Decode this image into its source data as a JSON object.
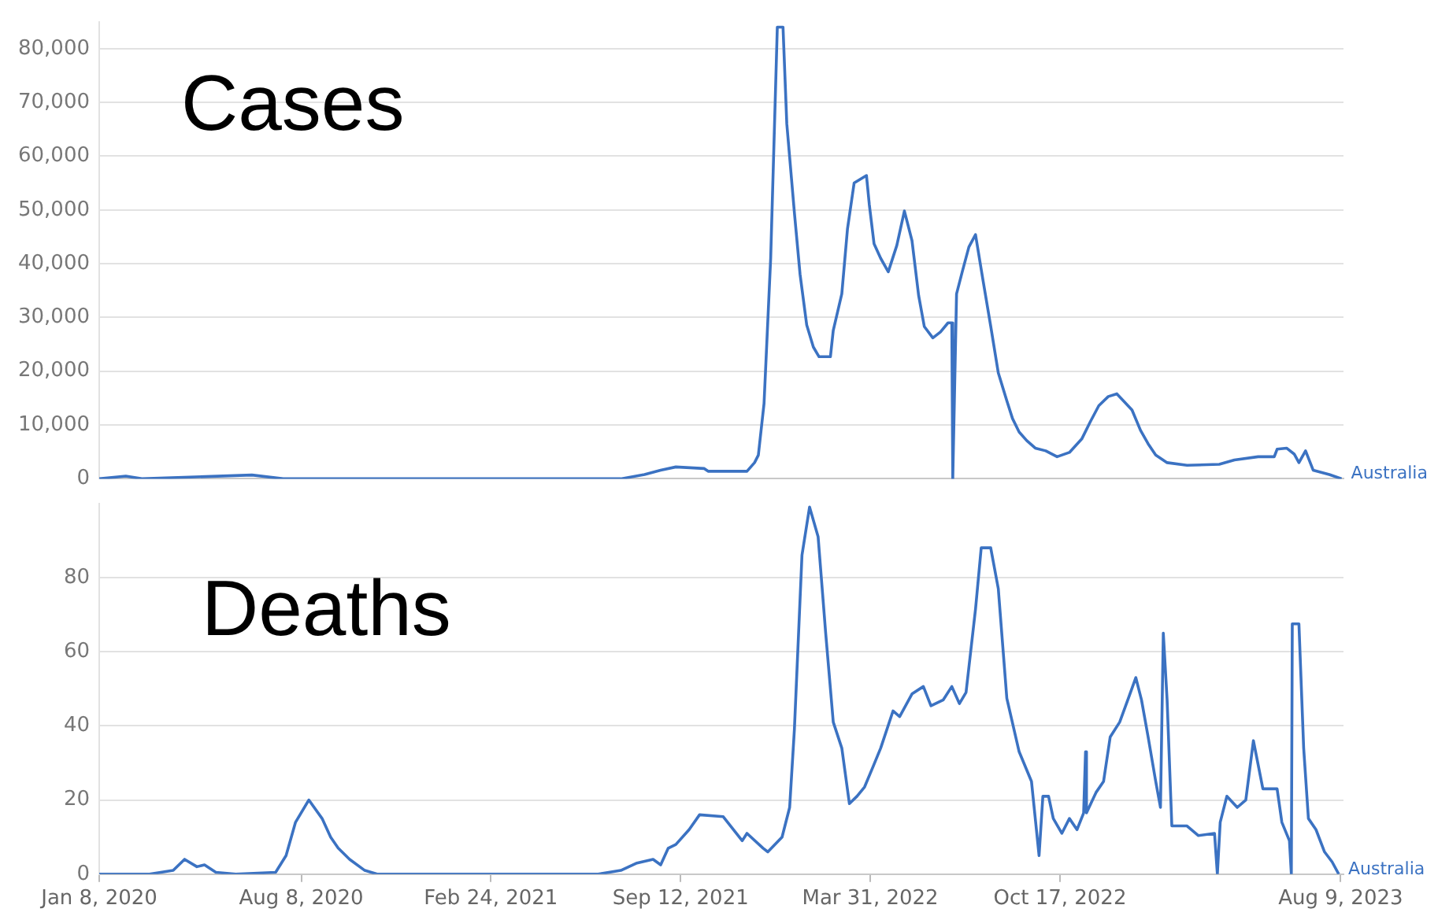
{
  "chart_data": [
    {
      "type": "line",
      "title": "Cases",
      "xlim": [
        "2020-01-08",
        "2023-08-12"
      ],
      "ylim": [
        0,
        85000
      ],
      "yticks": [
        {
          "value": 0,
          "label": "0"
        },
        {
          "value": 10000,
          "label": "10,000"
        },
        {
          "value": 20000,
          "label": "20,000"
        },
        {
          "value": 30000,
          "label": "30,000"
        },
        {
          "value": 40000,
          "label": "40,000"
        },
        {
          "value": 50000,
          "label": "50,000"
        },
        {
          "value": 60000,
          "label": "60,000"
        },
        {
          "value": 70000,
          "label": "70,000"
        },
        {
          "value": 80000,
          "label": "80,000"
        }
      ],
      "grid": "y",
      "tick_labels": "y",
      "marker": "none",
      "line_style": "solid",
      "series": [
        {
          "name": "Australia",
          "color": "#3b72c2",
          "x": [
            "2020-01-08",
            "2020-02-05",
            "2020-02-22",
            "2020-06-17",
            "2020-07-20",
            "2021-07-11",
            "2021-08-05",
            "2021-08-22",
            "2021-09-07",
            "2021-10-07",
            "2021-10-11",
            "2021-11-21",
            "2021-11-29",
            "2021-12-03",
            "2021-12-09",
            "2021-12-16",
            "2021-12-23",
            "2021-12-29",
            "2022-01-02",
            "2022-01-10",
            "2022-01-16",
            "2022-01-23",
            "2022-01-30",
            "2022-02-05",
            "2022-02-17",
            "2022-02-20",
            "2022-03-01",
            "2022-03-07",
            "2022-03-14",
            "2022-03-27",
            "2022-03-30",
            "2022-04-04",
            "2022-04-11",
            "2022-04-19",
            "2022-04-28",
            "2022-05-06",
            "2022-05-14",
            "2022-05-21",
            "2022-05-27",
            "2022-06-05",
            "2022-06-13",
            "2022-06-21",
            "2022-06-25",
            "2022-06-26",
            "2022-06-30",
            "2022-07-06",
            "2022-07-13",
            "2022-07-20",
            "2022-07-28",
            "2022-08-05",
            "2022-08-13",
            "2022-08-22",
            "2022-08-28",
            "2022-09-04",
            "2022-09-12",
            "2022-09-21",
            "2022-10-02",
            "2022-10-14",
            "2022-10-27",
            "2022-11-09",
            "2022-11-18",
            "2022-11-27",
            "2022-12-07",
            "2022-12-16",
            "2023-01-01",
            "2023-01-10",
            "2023-01-18",
            "2023-01-26",
            "2023-02-07",
            "2023-02-28",
            "2023-04-03",
            "2023-04-19",
            "2023-05-14",
            "2023-05-31",
            "2023-06-03",
            "2023-06-13",
            "2023-06-21",
            "2023-06-26",
            "2023-07-03",
            "2023-07-11",
            "2023-07-28",
            "2023-08-10"
          ],
          "values": [
            0,
            500,
            0,
            700,
            0,
            0,
            800,
            1600,
            2200,
            1900,
            1400,
            1400,
            3000,
            4400,
            14000,
            41000,
            84000,
            84000,
            66000,
            49500,
            38000,
            28600,
            24500,
            22700,
            22700,
            27600,
            34400,
            46500,
            55000,
            56400,
            51000,
            43700,
            41000,
            38500,
            43400,
            49800,
            44300,
            34100,
            28300,
            26200,
            27300,
            29000,
            29000,
            0,
            34400,
            38500,
            43100,
            45400,
            36800,
            28400,
            19700,
            14500,
            11200,
            8700,
            7100,
            5700,
            5200,
            4100,
            4900,
            7400,
            10600,
            13600,
            15300,
            15800,
            12800,
            9000,
            6500,
            4400,
            3000,
            2500,
            2700,
            3500,
            4100,
            4100,
            5500,
            5700,
            4600,
            3000,
            5200,
            1600,
            800,
            0
          ]
        }
      ]
    },
    {
      "type": "line",
      "title": "Deaths",
      "xlim": [
        "2020-01-08",
        "2023-08-12"
      ],
      "xticks": [
        {
          "value": "2020-01-08",
          "label": "Jan 8, 2020"
        },
        {
          "value": "2020-08-08",
          "label": "Aug 8, 2020"
        },
        {
          "value": "2021-02-24",
          "label": "Feb 24, 2021"
        },
        {
          "value": "2021-09-12",
          "label": "Sep 12, 2021"
        },
        {
          "value": "2022-03-31",
          "label": "Mar 31, 2022"
        },
        {
          "value": "2022-10-17",
          "label": "Oct 17, 2022"
        },
        {
          "value": "2023-08-09",
          "label": "Aug 9, 2023"
        }
      ],
      "ylim": [
        0,
        100
      ],
      "yticks": [
        0,
        20,
        40,
        60,
        80
      ],
      "grid": "y",
      "marker": "none",
      "line_style": "solid",
      "series": [
        {
          "name": "Australia",
          "color": "#3b72c2",
          "x": [
            "2020-01-08",
            "2020-03-01",
            "2020-03-26",
            "2020-04-07",
            "2020-04-20",
            "2020-04-28",
            "2020-05-10",
            "2020-05-31",
            "2020-07-12",
            "2020-07-23",
            "2020-08-02",
            "2020-08-16",
            "2020-08-30",
            "2020-09-08",
            "2020-09-16",
            "2020-09-28",
            "2020-10-14",
            "2020-10-27",
            "2021-06-17",
            "2021-07-11",
            "2021-07-28",
            "2021-08-14",
            "2021-08-22",
            "2021-08-30",
            "2021-09-07",
            "2021-09-21",
            "2021-10-02",
            "2021-10-27",
            "2021-11-16",
            "2021-11-21",
            "2021-12-08",
            "2021-12-13",
            "2021-12-28",
            "2022-01-05",
            "2022-01-10",
            "2022-01-18",
            "2022-01-26",
            "2022-02-04",
            "2022-02-12",
            "2022-02-20",
            "2022-03-01",
            "2022-03-09",
            "2022-03-17",
            "2022-03-25",
            "2022-04-03",
            "2022-04-11",
            "2022-04-24",
            "2022-05-01",
            "2022-05-14",
            "2022-05-26",
            "2022-06-03",
            "2022-06-16",
            "2022-06-25",
            "2022-07-03",
            "2022-07-10",
            "2022-07-20",
            "2022-07-26",
            "2022-08-05",
            "2022-08-13",
            "2022-08-22",
            "2022-09-04",
            "2022-09-17",
            "2022-09-25",
            "2022-09-29",
            "2022-10-05",
            "2022-10-10",
            "2022-10-19",
            "2022-10-27",
            "2022-11-04",
            "2022-11-11",
            "2022-11-13",
            "2022-11-14",
            "2022-11-24",
            "2022-12-02",
            "2022-12-09",
            "2022-12-19",
            "2022-12-29",
            "2023-01-05",
            "2023-01-11",
            "2023-01-18",
            "2023-01-26",
            "2023-01-31",
            "2023-02-03",
            "2023-02-07",
            "2023-02-12",
            "2023-02-28",
            "2023-03-12",
            "2023-03-29",
            "2023-04-01",
            "2023-04-04",
            "2023-04-11",
            "2023-04-22",
            "2023-05-01",
            "2023-05-09",
            "2023-05-19",
            "2023-06-03",
            "2023-06-08",
            "2023-06-16",
            "2023-06-18",
            "2023-06-19",
            "2023-06-26",
            "2023-07-01",
            "2023-07-06",
            "2023-07-14",
            "2023-07-23",
            "2023-07-31",
            "2023-08-07"
          ],
          "values": [
            0,
            0,
            1,
            4,
            2,
            2.5,
            0.5,
            0,
            0.5,
            5,
            14,
            20,
            15,
            10,
            7,
            4,
            1,
            0,
            0,
            1,
            3,
            4,
            2.5,
            7,
            8,
            12,
            16,
            15.5,
            9,
            11,
            7,
            6,
            10,
            18,
            39,
            86,
            99,
            91,
            65,
            41,
            34,
            19,
            21,
            23.5,
            29,
            34,
            44,
            42.5,
            48.6,
            50.6,
            45.4,
            47,
            50.6,
            46,
            49,
            71.5,
            88,
            88,
            77,
            47.4,
            33,
            25,
            5,
            21,
            21,
            15,
            11,
            15,
            12,
            16.5,
            33,
            16.5,
            22,
            25,
            37,
            41,
            48,
            53,
            47,
            37,
            25,
            18,
            65,
            47,
            13,
            13,
            10.4,
            11,
            0,
            14,
            21,
            18,
            20,
            36,
            23,
            23,
            14,
            9,
            0,
            67.5,
            67.5,
            34,
            15,
            12,
            6,
            3.3,
            0
          ]
        }
      ]
    }
  ]
}
